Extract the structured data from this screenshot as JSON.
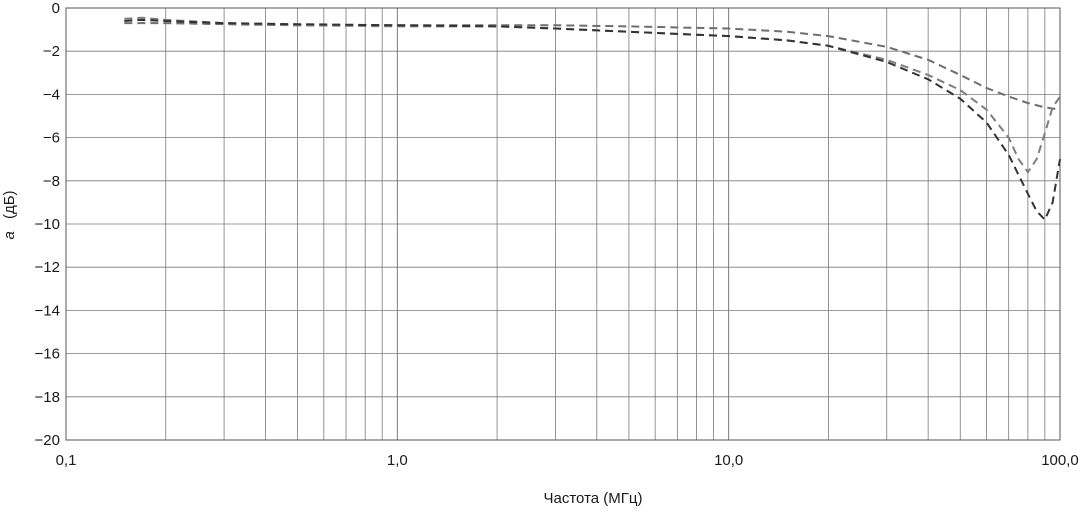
{
  "chart_data": {
    "type": "line",
    "title": "",
    "xlabel": "Частота (МГц)",
    "ylabel_italic": "a",
    "ylabel_unit": "(дБ)",
    "xscale": "log",
    "xlim": [
      0.1,
      100
    ],
    "ylim": [
      -20,
      0
    ],
    "grid": true,
    "x_ticks": [
      {
        "value": 0.1,
        "label": "0,1"
      },
      {
        "value": 1,
        "label": "1,0"
      },
      {
        "value": 10,
        "label": "10,0"
      },
      {
        "value": 100,
        "label": "100,0"
      }
    ],
    "y_ticks": [
      {
        "value": 0,
        "label": "0"
      },
      {
        "value": -2,
        "label": "−2"
      },
      {
        "value": -4,
        "label": "−4"
      },
      {
        "value": -6,
        "label": "−6"
      },
      {
        "value": -8,
        "label": "−8"
      },
      {
        "value": -10,
        "label": "−10"
      },
      {
        "value": -12,
        "label": "−12"
      },
      {
        "value": -14,
        "label": "−14"
      },
      {
        "value": -16,
        "label": "−16"
      },
      {
        "value": -18,
        "label": "−18"
      },
      {
        "value": -20,
        "label": "−20"
      }
    ],
    "series": [
      {
        "color": "#6e6e6e",
        "dash": "dashed",
        "points": [
          [
            0.15,
            -0.7
          ],
          [
            0.2,
            -0.7
          ],
          [
            0.3,
            -0.75
          ],
          [
            0.5,
            -0.8
          ],
          [
            1,
            -0.8
          ],
          [
            2,
            -0.8
          ],
          [
            3,
            -0.8
          ],
          [
            5,
            -0.85
          ],
          [
            7,
            -0.9
          ],
          [
            10,
            -0.95
          ],
          [
            15,
            -1.1
          ],
          [
            20,
            -1.3
          ],
          [
            30,
            -1.8
          ],
          [
            40,
            -2.4
          ],
          [
            50,
            -3.1
          ],
          [
            60,
            -3.7
          ],
          [
            70,
            -4.1
          ],
          [
            80,
            -4.4
          ],
          [
            90,
            -4.6
          ],
          [
            100,
            -4.7
          ]
        ]
      },
      {
        "color": "#7e7e7e",
        "dash": "dashed",
        "points": [
          [
            0.15,
            -0.5
          ],
          [
            0.17,
            -0.45
          ],
          [
            0.2,
            -0.55
          ],
          [
            0.3,
            -0.7
          ],
          [
            0.5,
            -0.8
          ],
          [
            1,
            -0.85
          ],
          [
            2,
            -0.85
          ],
          [
            3,
            -0.95
          ],
          [
            5,
            -1.1
          ],
          [
            7,
            -1.2
          ],
          [
            10,
            -1.3
          ],
          [
            15,
            -1.5
          ],
          [
            20,
            -1.75
          ],
          [
            30,
            -2.4
          ],
          [
            40,
            -3.1
          ],
          [
            50,
            -3.8
          ],
          [
            60,
            -4.7
          ],
          [
            70,
            -6.0
          ],
          [
            75,
            -7.0
          ],
          [
            80,
            -7.6
          ],
          [
            85,
            -7.0
          ],
          [
            90,
            -5.8
          ],
          [
            95,
            -4.6
          ],
          [
            100,
            -4.1
          ]
        ]
      },
      {
        "color": "#333333",
        "dash": "dashed",
        "points": [
          [
            0.15,
            -0.6
          ],
          [
            0.17,
            -0.55
          ],
          [
            0.2,
            -0.6
          ],
          [
            0.3,
            -0.7
          ],
          [
            0.5,
            -0.75
          ],
          [
            1,
            -0.8
          ],
          [
            2,
            -0.85
          ],
          [
            3,
            -0.95
          ],
          [
            5,
            -1.1
          ],
          [
            7,
            -1.2
          ],
          [
            10,
            -1.3
          ],
          [
            15,
            -1.5
          ],
          [
            20,
            -1.75
          ],
          [
            30,
            -2.5
          ],
          [
            40,
            -3.3
          ],
          [
            50,
            -4.2
          ],
          [
            60,
            -5.3
          ],
          [
            70,
            -6.8
          ],
          [
            80,
            -8.6
          ],
          [
            85,
            -9.4
          ],
          [
            90,
            -9.8
          ],
          [
            95,
            -9.0
          ],
          [
            100,
            -7.0
          ]
        ]
      }
    ]
  }
}
